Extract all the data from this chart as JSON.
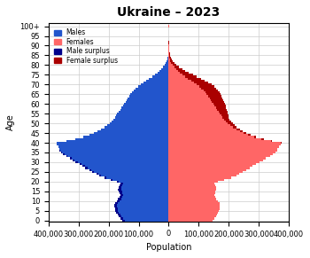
{
  "title": "Ukraine – 2023",
  "xlabel": "Population",
  "ylabel": "Age",
  "xlim": [
    -400000,
    400000
  ],
  "xticks": [
    -400000,
    -300000,
    -200000,
    -100000,
    0,
    100000,
    200000,
    300000,
    400000
  ],
  "xtick_labels": [
    "400,000",
    "300,000",
    "200,000",
    "100,000",
    "0",
    "100,000",
    "200,000",
    "300,000",
    "400,000"
  ],
  "color_male": "#2255CC",
  "color_female": "#FF6666",
  "color_male_surplus": "#00008B",
  "color_female_surplus": "#AA0000",
  "legend_labels": [
    "Males",
    "Females",
    "Male surplus",
    "Female surplus"
  ],
  "ages": [
    0,
    1,
    2,
    3,
    4,
    5,
    6,
    7,
    8,
    9,
    10,
    11,
    12,
    13,
    14,
    15,
    16,
    17,
    18,
    19,
    20,
    21,
    22,
    23,
    24,
    25,
    26,
    27,
    28,
    29,
    30,
    31,
    32,
    33,
    34,
    35,
    36,
    37,
    38,
    39,
    40,
    41,
    42,
    43,
    44,
    45,
    46,
    47,
    48,
    49,
    50,
    51,
    52,
    53,
    54,
    55,
    56,
    57,
    58,
    59,
    60,
    61,
    62,
    63,
    64,
    65,
    66,
    67,
    68,
    69,
    70,
    71,
    72,
    73,
    74,
    75,
    76,
    77,
    78,
    79,
    80,
    81,
    82,
    83,
    84,
    85,
    86,
    87,
    88,
    89,
    90,
    91,
    92,
    93,
    94,
    95,
    96,
    97,
    98,
    99,
    100
  ],
  "males": [
    155000,
    160000,
    165000,
    170000,
    175000,
    178000,
    179000,
    181000,
    181000,
    179000,
    172000,
    168000,
    163000,
    161000,
    163000,
    165000,
    168000,
    167000,
    163000,
    161000,
    172000,
    192000,
    214000,
    230000,
    240000,
    255000,
    265000,
    278000,
    287000,
    297000,
    310000,
    320000,
    330000,
    342000,
    352000,
    358000,
    363000,
    365000,
    368000,
    372000,
    374000,
    340000,
    310000,
    284000,
    264000,
    250000,
    238000,
    226000,
    215000,
    206000,
    197000,
    190000,
    184000,
    179000,
    175000,
    171000,
    167000,
    162000,
    157000,
    152000,
    148000,
    143000,
    139000,
    136000,
    132000,
    127000,
    122000,
    116000,
    109000,
    102000,
    94000,
    85000,
    75000,
    65000,
    55000,
    46000,
    38000,
    30000,
    24000,
    18000,
    13000,
    9000,
    6000,
    4000,
    3000,
    2000,
    1500,
    1000,
    700,
    400,
    250,
    150,
    100,
    70,
    40,
    20,
    10,
    5,
    2,
    1,
    500
  ],
  "females": [
    147000,
    152000,
    157000,
    161000,
    165000,
    168000,
    169000,
    171000,
    171000,
    169000,
    163000,
    159000,
    155000,
    153000,
    154000,
    156000,
    159000,
    158000,
    155000,
    153000,
    165000,
    186000,
    208000,
    225000,
    234000,
    248000,
    258000,
    270000,
    280000,
    291000,
    303000,
    314000,
    324000,
    337000,
    347000,
    355000,
    361000,
    363000,
    367000,
    372000,
    376000,
    345000,
    316000,
    292000,
    272000,
    258000,
    247000,
    237000,
    227000,
    220000,
    213000,
    208000,
    203000,
    200000,
    198000,
    197000,
    196000,
    194000,
    192000,
    190000,
    188000,
    185000,
    182000,
    179000,
    176000,
    173000,
    170000,
    165000,
    158000,
    151000,
    143000,
    133000,
    121000,
    108000,
    94000,
    81000,
    68000,
    56000,
    45000,
    35000,
    26000,
    19000,
    14000,
    10000,
    7000,
    5000,
    3500,
    2400,
    1700,
    1000,
    600,
    380,
    240,
    150,
    85,
    45,
    22,
    10,
    4,
    1,
    800
  ]
}
